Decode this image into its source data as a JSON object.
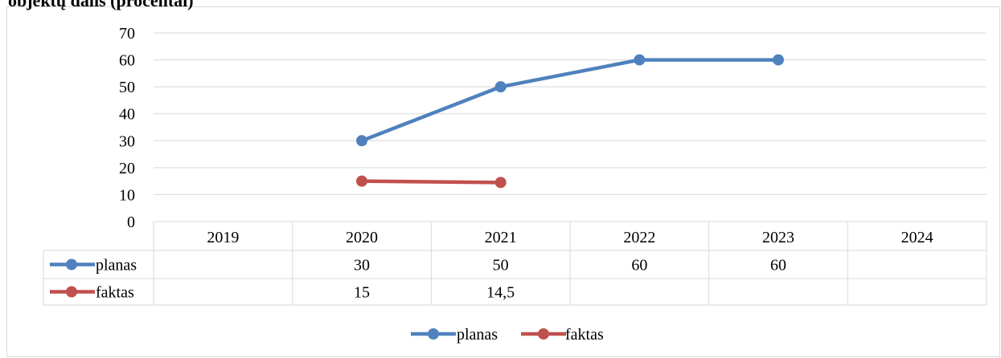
{
  "page": {
    "title": "objektų dalis (procentai)"
  },
  "chart_data": {
    "type": "line",
    "title": "objektų dalis (procentai)",
    "categories": [
      "2019",
      "2020",
      "2021",
      "2022",
      "2023",
      "2024"
    ],
    "ylim": [
      0,
      70
    ],
    "yticks": [
      "0",
      "10",
      "20",
      "30",
      "40",
      "50",
      "60",
      "70"
    ],
    "yticks_values": [
      0,
      10,
      20,
      30,
      40,
      50,
      60,
      70
    ],
    "grid": true,
    "legend_position": "bottom",
    "series": [
      {
        "name": "planas",
        "color": "#4f81bd",
        "values": [
          null,
          30,
          50,
          60,
          60,
          null
        ],
        "labels": [
          "",
          "30",
          "50",
          "60",
          "60",
          ""
        ]
      },
      {
        "name": "faktas",
        "color": "#c0504d",
        "values": [
          null,
          15,
          14.5,
          null,
          null,
          null
        ],
        "labels": [
          "",
          "15",
          "14,5",
          "",
          "",
          ""
        ]
      }
    ]
  }
}
